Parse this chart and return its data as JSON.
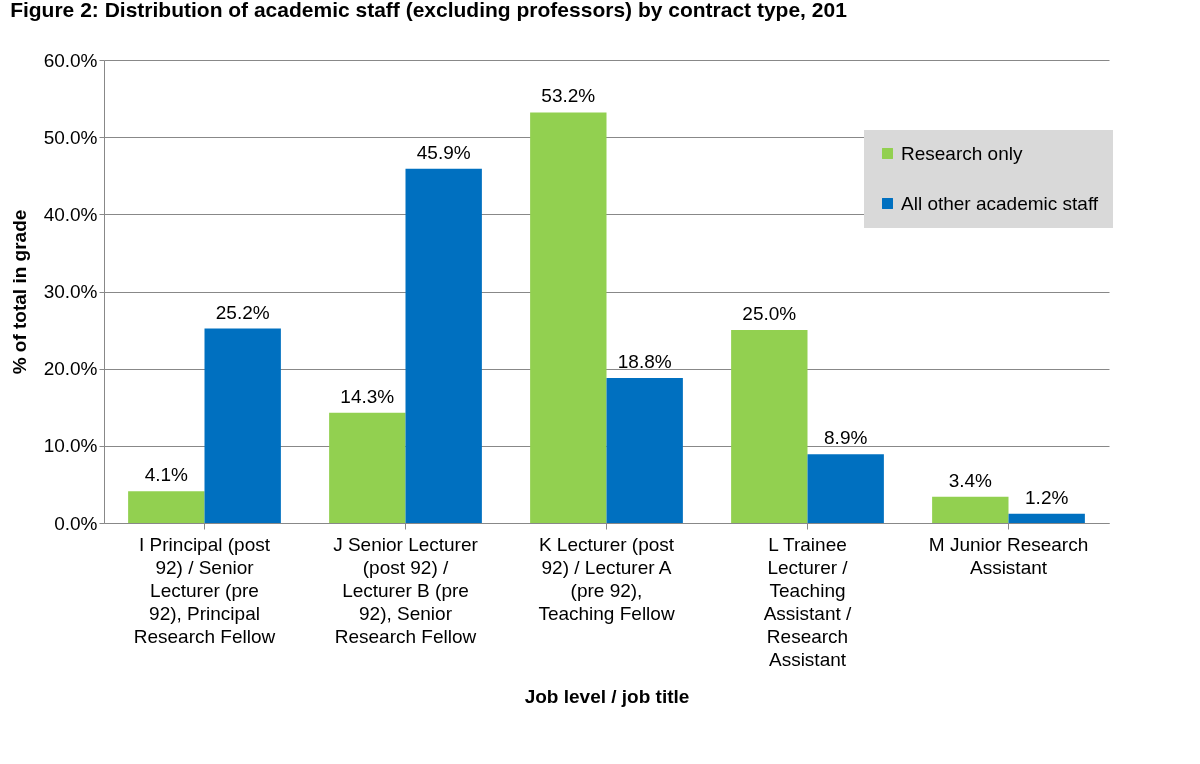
{
  "chart_data": {
    "type": "bar",
    "title": "Figure 2: Distribution of academic staff (excluding professors) by contract type, 201",
    "xlabel": "Job level / job title",
    "ylabel": "% of total in grade",
    "categories": [
      "I Principal (post 92) / Senior Lecturer (pre 92), Principal Research Fellow",
      "J Senior Lecturer (post 92) / Lecturer B (pre 92), Senior Research Fellow",
      "K Lecturer (post 92) / Lecturer A (pre 92), Teaching Fellow",
      "L Trainee Lecturer / Teaching Assistant / Research Assistant",
      "M Junior Research Assistant"
    ],
    "series": [
      {
        "name": "Research only",
        "color": "#92d050",
        "values": [
          4.1,
          14.3,
          53.2,
          25.0,
          3.4
        ],
        "value_labels": [
          "4.1%",
          "14.3%",
          "53.2%",
          "25.0%",
          "3.4%"
        ]
      },
      {
        "name": "All other academic staff",
        "color": "#0070c0",
        "values": [
          25.2,
          45.9,
          18.8,
          8.9,
          1.2
        ],
        "value_labels": [
          "25.2%",
          "45.9%",
          "18.8%",
          "8.9%",
          "1.2%"
        ]
      }
    ],
    "ylim": [
      0,
      60
    ],
    "yticks": [
      {
        "value": 0,
        "label": "0.0%"
      },
      {
        "value": 10,
        "label": "10.0%"
      },
      {
        "value": 20,
        "label": "20.0%"
      },
      {
        "value": 30,
        "label": "30.0%"
      },
      {
        "value": 40,
        "label": "40.0%"
      },
      {
        "value": 50,
        "label": "50.0%"
      },
      {
        "value": 60,
        "label": "60.0%"
      }
    ],
    "grid": "y",
    "legend": "top right"
  }
}
